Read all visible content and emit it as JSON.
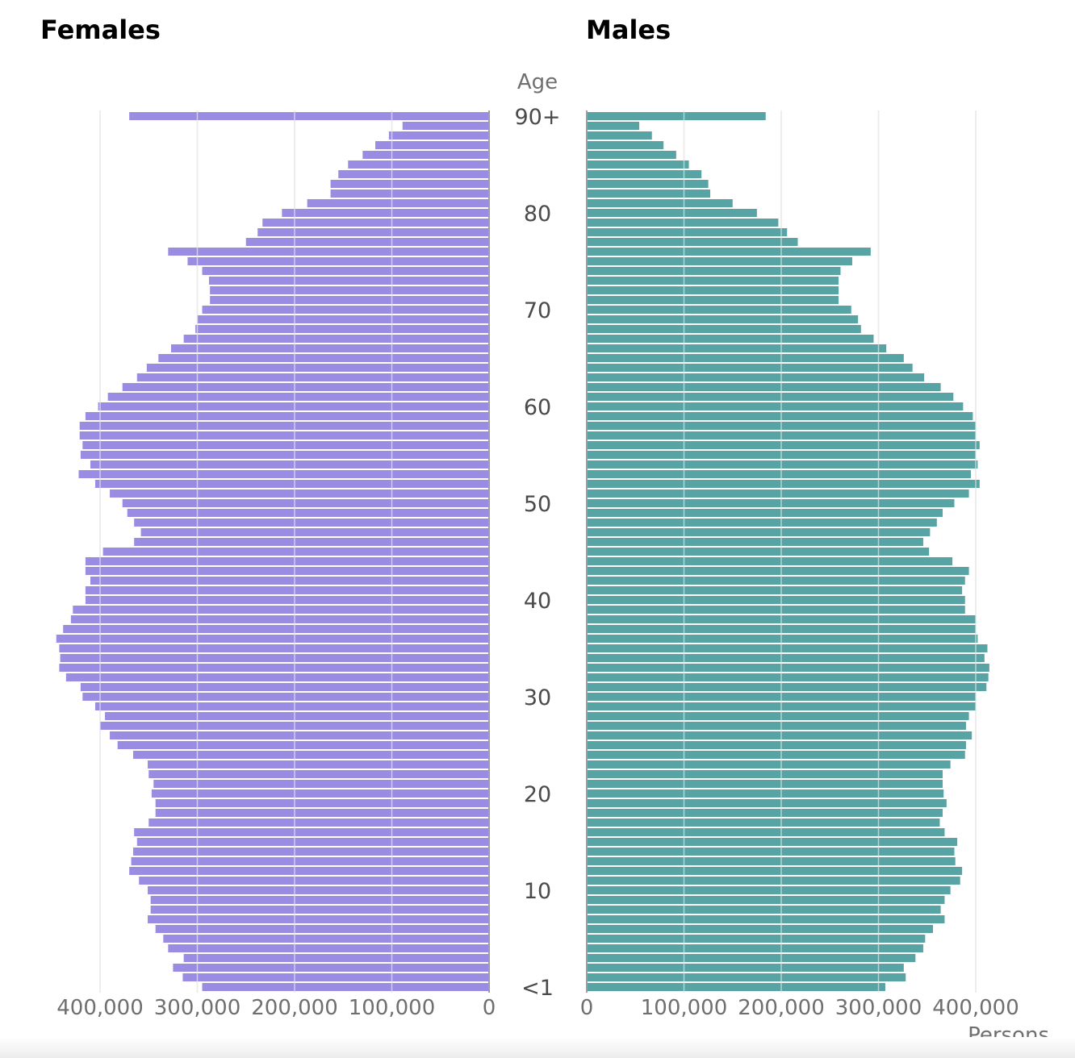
{
  "chart_data": {
    "type": "bar",
    "orientation": "horizontal",
    "layout": "population-pyramid",
    "panels": [
      "Females",
      "Males"
    ],
    "center_label": "Age",
    "age_labels": [
      "<1",
      "10",
      "20",
      "30",
      "40",
      "50",
      "60",
      "70",
      "80",
      "90+"
    ],
    "age_label_values": [
      0,
      10,
      20,
      30,
      40,
      50,
      60,
      70,
      80,
      90
    ],
    "x_ticks_females": [
      "400,000",
      "300,000",
      "200,000",
      "100,000",
      "0"
    ],
    "x_ticks_males": [
      "0",
      "100,000",
      "200,000",
      "300,000",
      "400,000"
    ],
    "x_tick_values": [
      400000,
      300000,
      200000,
      100000,
      0
    ],
    "xlabel": "Persons",
    "xlim": [
      0,
      400000
    ],
    "grid": true,
    "colors": {
      "females": "#9a8ce2",
      "males": "#58a3a3",
      "grid": "#d3d3d3",
      "baseline": "#9e9e9e",
      "tick_text": "#6f6f6f",
      "age_text": "#4a4a4a"
    },
    "ages": [
      0,
      1,
      2,
      3,
      4,
      5,
      6,
      7,
      8,
      9,
      10,
      11,
      12,
      13,
      14,
      15,
      16,
      17,
      18,
      19,
      20,
      21,
      22,
      23,
      24,
      25,
      26,
      27,
      28,
      29,
      30,
      31,
      32,
      33,
      34,
      35,
      36,
      37,
      38,
      39,
      40,
      41,
      42,
      43,
      44,
      45,
      46,
      47,
      48,
      49,
      50,
      51,
      52,
      53,
      54,
      55,
      56,
      57,
      58,
      59,
      60,
      61,
      62,
      63,
      64,
      65,
      66,
      67,
      68,
      69,
      70,
      71,
      72,
      73,
      74,
      75,
      76,
      77,
      78,
      79,
      80,
      81,
      82,
      83,
      84,
      85,
      86,
      87,
      88,
      89,
      90
    ],
    "series": [
      {
        "name": "Females",
        "values": [
          295000,
          315000,
          325000,
          314000,
          330000,
          335000,
          343000,
          351000,
          348000,
          348000,
          351000,
          360000,
          370000,
          368000,
          366000,
          362000,
          365000,
          350000,
          343000,
          343000,
          347000,
          345000,
          350000,
          351000,
          366000,
          382000,
          390000,
          400000,
          395000,
          405000,
          418000,
          420000,
          435000,
          442000,
          441000,
          442000,
          445000,
          438000,
          430000,
          428000,
          415000,
          415000,
          410000,
          415000,
          415000,
          397000,
          365000,
          358000,
          365000,
          372000,
          377000,
          390000,
          405000,
          422000,
          410000,
          420000,
          418000,
          421000,
          421000,
          415000,
          402000,
          392000,
          377000,
          362000,
          352000,
          340000,
          327000,
          314000,
          302000,
          300000,
          295000,
          287000,
          287000,
          288000,
          295000,
          310000,
          330000,
          250000,
          238000,
          233000,
          213000,
          187000,
          163000,
          163000,
          155000,
          145000,
          130000,
          117000,
          103000,
          89000,
          370000
        ]
      },
      {
        "name": "Males",
        "values": [
          307000,
          328000,
          326000,
          338000,
          346000,
          348000,
          356000,
          368000,
          364000,
          368000,
          374000,
          384000,
          386000,
          379000,
          378000,
          381000,
          368000,
          363000,
          366000,
          370000,
          367000,
          366000,
          366000,
          374000,
          389000,
          390000,
          396000,
          390000,
          393000,
          400000,
          400000,
          411000,
          413000,
          414000,
          409000,
          412000,
          402000,
          400000,
          400000,
          389000,
          389000,
          386000,
          389000,
          393000,
          376000,
          352000,
          346000,
          353000,
          360000,
          366000,
          378000,
          393000,
          404000,
          395000,
          402000,
          400000,
          404000,
          400000,
          400000,
          397000,
          387000,
          377000,
          364000,
          347000,
          335000,
          326000,
          308000,
          295000,
          282000,
          279000,
          272000,
          259000,
          259000,
          259000,
          261000,
          273000,
          292000,
          217000,
          206000,
          197000,
          175000,
          150000,
          127000,
          125000,
          118000,
          105000,
          92000,
          79000,
          67000,
          54000,
          184000
        ]
      }
    ]
  }
}
